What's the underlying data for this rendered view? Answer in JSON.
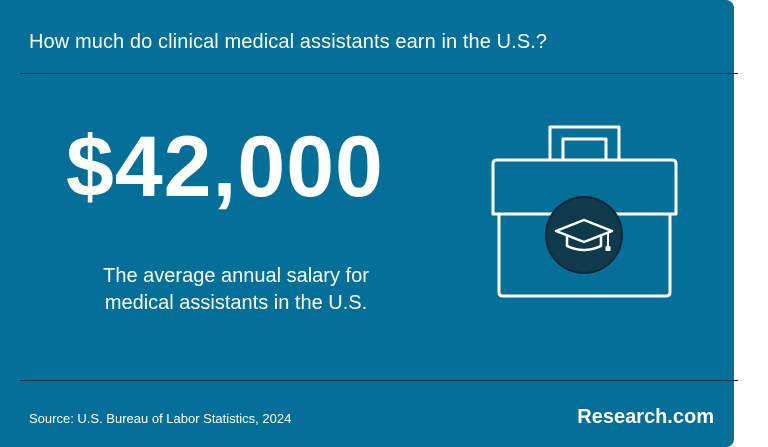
{
  "header": {
    "title": "How much do clinical medical assistants earn in the U.S.?"
  },
  "stat": {
    "value": "$42,000",
    "caption_line1": "The average annual salary for",
    "caption_line2": "medical assistants in the U.S."
  },
  "illustration": {
    "icon": "briefcase-graduation-cap-icon"
  },
  "footer": {
    "source": "Source: U.S. Bureau of Labor Statistics, 2024",
    "brand": "Research.com"
  },
  "colors": {
    "background": "#04709a",
    "text": "#ffffff",
    "divider": "#0d2f3d",
    "icon_circle": "#0f3a4c"
  }
}
